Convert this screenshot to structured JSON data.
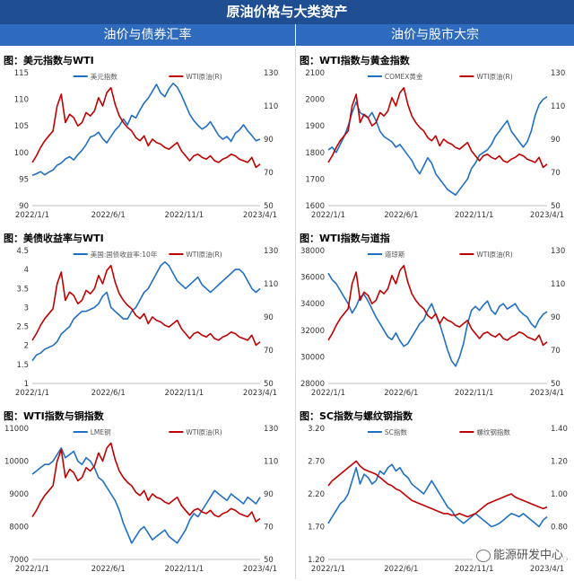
{
  "header": {
    "title": "原油价格与大类资产",
    "left_section": "油价与债券汇率",
    "right_section": "油价与股市大宗"
  },
  "watermark": "能源研发中心",
  "colors": {
    "blue": "#1f6fc4",
    "red": "#c00000"
  },
  "chart_data": [
    {
      "id": "p1",
      "type": "line",
      "title": "图：美元指数与WTI",
      "x_ticks": [
        "2022/1/1",
        "2022/6/1",
        "2022/11/1",
        "2023/4/1"
      ],
      "y_left": {
        "ticks": [
          "115",
          "110",
          "105",
          "100",
          "95",
          "90"
        ],
        "lim": [
          90,
          115
        ]
      },
      "y_right": {
        "ticks": [
          "130",
          "110",
          "90",
          "70",
          "50"
        ],
        "lim": [
          50,
          130
        ]
      },
      "series": [
        {
          "name": "美元指数",
          "axis": "left",
          "color": "#1f6fc4",
          "values": [
            95.7,
            96.0,
            96.4,
            95.8,
            96.3,
            96.7,
            97.6,
            98.0,
            98.8,
            99.2,
            98.6,
            99.6,
            100.4,
            101.5,
            102.9,
            103.2,
            103.8,
            102.6,
            101.8,
            103.0,
            104.2,
            105.0,
            106.3,
            105.2,
            107.0,
            106.5,
            108.0,
            109.3,
            110.2,
            111.5,
            112.8,
            111.2,
            110.5,
            112.0,
            113.0,
            112.3,
            110.8,
            109.0,
            107.2,
            106.0,
            105.1,
            104.4,
            104.9,
            105.8,
            104.5,
            103.2,
            102.5,
            103.0,
            102.1,
            103.6,
            104.2,
            105.2,
            104.1,
            103.2,
            102.2,
            102.5
          ]
        },
        {
          "name": "WTI原油(R)",
          "axis": "right",
          "color": "#c00000",
          "values": [
            76,
            80,
            85,
            89,
            92,
            95,
            110,
            117,
            100,
            105,
            103,
            98,
            100,
            106,
            104,
            107,
            115,
            110,
            118,
            121,
            111,
            104,
            100,
            97,
            95,
            91,
            89,
            92,
            86,
            90,
            88,
            87,
            85,
            84,
            86,
            88,
            83,
            80,
            77,
            80,
            81,
            79,
            78,
            80,
            77,
            76,
            78,
            79,
            81,
            80,
            78,
            77,
            76,
            79,
            73,
            75
          ]
        }
      ]
    },
    {
      "id": "p2",
      "type": "line",
      "title": "图：WTI指数与黄金指数",
      "x_ticks": [
        "2022/1/1",
        "2022/6/1",
        "2022/11/1",
        "2023/4/1"
      ],
      "y_left": {
        "ticks": [
          "2100",
          "2000",
          "1900",
          "1800",
          "1700",
          "1600"
        ],
        "lim": [
          1600,
          2100
        ]
      },
      "y_right": {
        "ticks": [
          "130",
          "110",
          "90",
          "70",
          "50"
        ],
        "lim": [
          50,
          130
        ]
      },
      "series": [
        {
          "name": "COMEX黄金",
          "axis": "left",
          "color": "#1f6fc4",
          "values": [
            1810,
            1820,
            1800,
            1830,
            1860,
            1900,
            1950,
            1990,
            1950,
            1940,
            1930,
            1950,
            1920,
            1880,
            1860,
            1850,
            1840,
            1820,
            1830,
            1810,
            1790,
            1770,
            1740,
            1720,
            1750,
            1780,
            1760,
            1720,
            1700,
            1680,
            1660,
            1650,
            1640,
            1660,
            1680,
            1700,
            1740,
            1760,
            1790,
            1800,
            1810,
            1830,
            1860,
            1880,
            1900,
            1920,
            1880,
            1860,
            1840,
            1820,
            1840,
            1880,
            1940,
            1980,
            2000,
            2010
          ]
        },
        {
          "name": "WTI原油(R)",
          "axis": "right",
          "color": "#c00000",
          "values": [
            76,
            80,
            85,
            89,
            92,
            95,
            110,
            117,
            100,
            105,
            103,
            98,
            100,
            106,
            104,
            107,
            115,
            110,
            118,
            121,
            111,
            104,
            100,
            97,
            95,
            91,
            89,
            92,
            86,
            90,
            88,
            87,
            85,
            84,
            86,
            88,
            83,
            80,
            77,
            80,
            81,
            79,
            78,
            80,
            77,
            76,
            78,
            79,
            81,
            80,
            78,
            77,
            76,
            79,
            73,
            75
          ]
        }
      ]
    },
    {
      "id": "p3",
      "type": "line",
      "title": "图：美债收益率与WTI",
      "x_ticks": [
        "2022/1/1",
        "2022/6/1",
        "2022/11/1",
        "2023/4/1"
      ],
      "y_left": {
        "ticks": [
          "4.5",
          "4",
          "3.5",
          "3",
          "2.5",
          "2",
          "1.5",
          "1"
        ],
        "lim": [
          1,
          4.5
        ]
      },
      "y_right": {
        "ticks": [
          "130",
          "110",
          "90",
          "70",
          "50"
        ],
        "lim": [
          50,
          130
        ]
      },
      "series": [
        {
          "name": "美国:国债收益率:10年",
          "axis": "left",
          "color": "#1f6fc4",
          "values": [
            1.6,
            1.75,
            1.8,
            1.9,
            1.95,
            2.0,
            2.1,
            2.3,
            2.4,
            2.5,
            2.7,
            2.8,
            2.9,
            2.9,
            2.95,
            3.0,
            3.1,
            3.3,
            3.4,
            3.0,
            2.9,
            2.8,
            2.7,
            2.7,
            2.9,
            3.0,
            3.2,
            3.4,
            3.5,
            3.7,
            3.9,
            4.1,
            4.2,
            4.1,
            3.9,
            3.7,
            3.6,
            3.5,
            3.6,
            3.7,
            3.8,
            3.6,
            3.5,
            3.4,
            3.5,
            3.6,
            3.7,
            3.8,
            3.9,
            4.0,
            4.0,
            3.9,
            3.7,
            3.5,
            3.4,
            3.5
          ]
        },
        {
          "name": "WTI原油(R)",
          "axis": "right",
          "color": "#c00000",
          "values": [
            76,
            80,
            85,
            89,
            92,
            95,
            110,
            117,
            100,
            105,
            103,
            98,
            100,
            106,
            104,
            107,
            115,
            110,
            118,
            121,
            111,
            104,
            100,
            97,
            95,
            91,
            89,
            92,
            86,
            90,
            88,
            87,
            85,
            84,
            86,
            88,
            83,
            80,
            77,
            80,
            81,
            79,
            78,
            80,
            77,
            76,
            78,
            79,
            81,
            80,
            78,
            77,
            76,
            79,
            73,
            75
          ]
        }
      ]
    },
    {
      "id": "p4",
      "type": "line",
      "title": "图：WTI指数与道指",
      "x_ticks": [
        "2022/1/1",
        "2022/6/1",
        "2022/11/1",
        "2023/4/1"
      ],
      "y_left": {
        "ticks": [
          "38000",
          "36000",
          "34000",
          "32000",
          "30000",
          "28000"
        ],
        "lim": [
          28000,
          38000
        ]
      },
      "y_right": {
        "ticks": [
          "130",
          "110",
          "90",
          "70",
          "50"
        ],
        "lim": [
          50,
          130
        ]
      },
      "series": [
        {
          "name": "道琼斯",
          "axis": "left",
          "color": "#1f6fc4",
          "values": [
            36300,
            35800,
            35500,
            35000,
            34500,
            34000,
            33300,
            33800,
            34500,
            34700,
            34200,
            33600,
            33000,
            32500,
            32000,
            31500,
            31300,
            31800,
            31200,
            30800,
            31000,
            31500,
            32000,
            32500,
            32800,
            33500,
            34000,
            33200,
            32500,
            31500,
            30500,
            29700,
            29300,
            30000,
            31000,
            32500,
            33500,
            33800,
            33500,
            33900,
            34200,
            33500,
            33200,
            33800,
            34000,
            33600,
            33800,
            34000,
            33500,
            33200,
            33000,
            32500,
            32200,
            32800,
            33200,
            33400
          ]
        },
        {
          "name": "WTI原油(R)",
          "axis": "right",
          "color": "#c00000",
          "values": [
            76,
            80,
            85,
            89,
            92,
            95,
            110,
            117,
            100,
            105,
            103,
            98,
            100,
            106,
            104,
            107,
            115,
            110,
            118,
            121,
            111,
            104,
            100,
            97,
            95,
            91,
            89,
            92,
            86,
            90,
            88,
            87,
            85,
            84,
            86,
            88,
            83,
            80,
            77,
            80,
            81,
            79,
            78,
            80,
            77,
            76,
            78,
            79,
            81,
            80,
            78,
            77,
            76,
            79,
            73,
            75
          ]
        }
      ]
    },
    {
      "id": "p5",
      "type": "line",
      "title": "图：WTI指数与铜指数",
      "x_ticks": [
        "2022/1/1",
        "2022/6/1",
        "2022/11/1",
        "2023/4/1"
      ],
      "y_left": {
        "ticks": [
          "11000",
          "10000",
          "9000",
          "8000",
          "7000"
        ],
        "lim": [
          7000,
          11000
        ]
      },
      "y_right": {
        "ticks": [
          "130",
          "110",
          "90",
          "70",
          "50"
        ],
        "lim": [
          50,
          130
        ]
      },
      "series": [
        {
          "name": "LME铜",
          "axis": "left",
          "color": "#1f6fc4",
          "values": [
            9600,
            9700,
            9800,
            9900,
            9900,
            10000,
            10200,
            10400,
            10100,
            10200,
            10300,
            10000,
            9900,
            10100,
            10000,
            9800,
            9500,
            9400,
            9200,
            9000,
            8800,
            8500,
            8100,
            7800,
            7500,
            7700,
            7900,
            8000,
            7800,
            7600,
            7700,
            7800,
            7900,
            7700,
            7600,
            7500,
            7700,
            7900,
            8200,
            8400,
            8300,
            8500,
            8700,
            8900,
            9100,
            9000,
            8900,
            8800,
            9000,
            8900,
            8800,
            8700,
            8900,
            8800,
            8700,
            8900
          ]
        },
        {
          "name": "WTI原油(R)",
          "axis": "right",
          "color": "#c00000",
          "values": [
            76,
            80,
            85,
            89,
            92,
            95,
            110,
            117,
            100,
            105,
            103,
            98,
            100,
            106,
            104,
            107,
            115,
            110,
            118,
            121,
            111,
            104,
            100,
            97,
            95,
            91,
            89,
            92,
            86,
            90,
            88,
            87,
            85,
            84,
            86,
            88,
            83,
            80,
            77,
            80,
            81,
            79,
            78,
            80,
            77,
            76,
            78,
            79,
            81,
            80,
            78,
            77,
            76,
            79,
            73,
            75
          ]
        }
      ]
    },
    {
      "id": "p6",
      "type": "line",
      "title": "图：SC指数与螺纹钢指数",
      "x_ticks": [
        "2022/1/1",
        "2022/6/1",
        "2022/11/1",
        "2023/4/1"
      ],
      "y_left": {
        "ticks": [
          "3.20",
          "2.70",
          "2.20",
          "1.70",
          "1.20"
        ],
        "lim": [
          1.2,
          3.2
        ]
      },
      "y_right": {
        "ticks": [
          "1.40",
          "1.20",
          "1.00",
          "0.80",
          "0.60"
        ],
        "lim": [
          0.6,
          1.4
        ]
      },
      "series": [
        {
          "name": "SC指数",
          "axis": "left",
          "color": "#1f6fc4",
          "values": [
            1.75,
            1.85,
            1.95,
            2.05,
            2.1,
            2.2,
            2.4,
            2.6,
            2.35,
            2.5,
            2.45,
            2.35,
            2.4,
            2.55,
            2.5,
            2.6,
            2.65,
            2.55,
            2.6,
            2.5,
            2.45,
            2.35,
            2.3,
            2.25,
            2.2,
            2.3,
            2.4,
            2.3,
            2.2,
            2.1,
            2.0,
            1.95,
            1.85,
            1.8,
            1.75,
            1.8,
            1.85,
            1.9,
            1.85,
            1.8,
            1.75,
            1.7,
            1.72,
            1.75,
            1.8,
            1.85,
            1.9,
            1.88,
            1.85,
            1.9,
            1.85,
            1.8,
            1.75,
            1.7,
            1.8,
            1.85
          ]
        },
        {
          "name": "螺纹钢指数",
          "axis": "right",
          "color": "#c00000",
          "values": [
            1.05,
            1.08,
            1.1,
            1.12,
            1.14,
            1.16,
            1.18,
            1.2,
            1.17,
            1.15,
            1.14,
            1.13,
            1.12,
            1.1,
            1.08,
            1.06,
            1.05,
            1.03,
            1.02,
            1.0,
            0.98,
            0.96,
            0.95,
            0.94,
            0.93,
            0.92,
            0.91,
            0.9,
            0.89,
            0.88,
            0.88,
            0.87,
            0.87,
            0.88,
            0.87,
            0.86,
            0.87,
            0.88,
            0.9,
            0.92,
            0.94,
            0.95,
            0.96,
            0.97,
            0.98,
            0.99,
            1.0,
            0.98,
            0.97,
            0.96,
            0.95,
            0.94,
            0.93,
            0.92,
            0.91,
            0.92
          ]
        }
      ]
    }
  ]
}
